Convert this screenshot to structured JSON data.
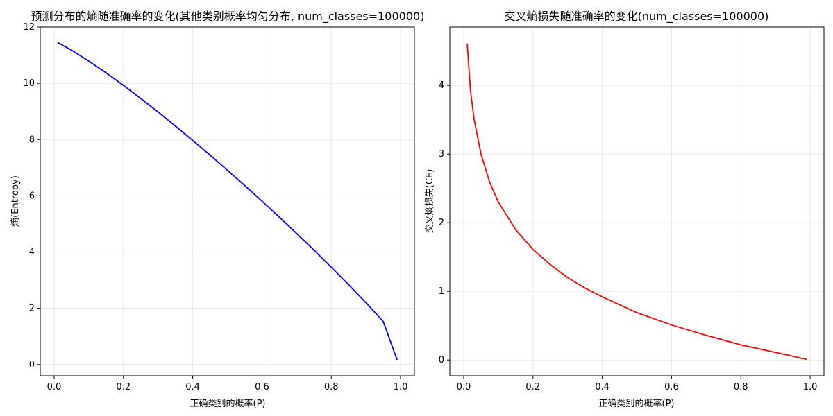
{
  "chart_data": [
    {
      "type": "line",
      "title": "预测分布的熵随准确率的变化(其他类别概率均匀分布, num_classes=100000)",
      "xlabel": "正确类别的概率(P)",
      "ylabel": "熵(Entropy)",
      "xlim": [
        -0.04,
        1.04
      ],
      "ylim": [
        -0.4,
        12.0
      ],
      "xticks": [
        "0.0",
        "0.2",
        "0.4",
        "0.6",
        "0.8",
        "1.0"
      ],
      "yticks": [
        "0",
        "2",
        "4",
        "6",
        "8",
        "10",
        "12"
      ],
      "grid": true,
      "series": [
        {
          "color": "#0000ff",
          "x": [
            0.01,
            0.05,
            0.1,
            0.15,
            0.2,
            0.25,
            0.3,
            0.35,
            0.4,
            0.45,
            0.5,
            0.55,
            0.6,
            0.65,
            0.7,
            0.75,
            0.8,
            0.85,
            0.9,
            0.95,
            0.99
          ],
          "y": [
            11.45,
            11.18,
            10.79,
            10.37,
            9.93,
            9.46,
            8.98,
            8.48,
            7.97,
            7.45,
            6.91,
            6.37,
            5.81,
            5.24,
            4.66,
            4.07,
            3.46,
            2.84,
            2.2,
            1.53,
            0.17
          ]
        }
      ]
    },
    {
      "type": "line",
      "title": "交叉熵损失随准确率的变化(num_classes=100000)",
      "xlabel": "正确类别的概率(P)",
      "ylabel": "交叉熵损失(CE)",
      "xlim": [
        -0.04,
        1.04
      ],
      "ylim": [
        -0.23,
        4.85
      ],
      "xticks": [
        "0.0",
        "0.2",
        "0.4",
        "0.6",
        "0.8",
        "1.0"
      ],
      "yticks": [
        "0",
        "1",
        "2",
        "3",
        "4"
      ],
      "grid": true,
      "series": [
        {
          "color": "#ff0000",
          "x": [
            0.01,
            0.02,
            0.03,
            0.05,
            0.075,
            0.1,
            0.15,
            0.2,
            0.25,
            0.3,
            0.35,
            0.4,
            0.5,
            0.6,
            0.7,
            0.8,
            0.9,
            0.99
          ],
          "y": [
            4.61,
            3.91,
            3.51,
            3.0,
            2.59,
            2.3,
            1.9,
            1.61,
            1.39,
            1.2,
            1.05,
            0.92,
            0.69,
            0.51,
            0.36,
            0.22,
            0.11,
            0.01
          ]
        }
      ]
    }
  ]
}
